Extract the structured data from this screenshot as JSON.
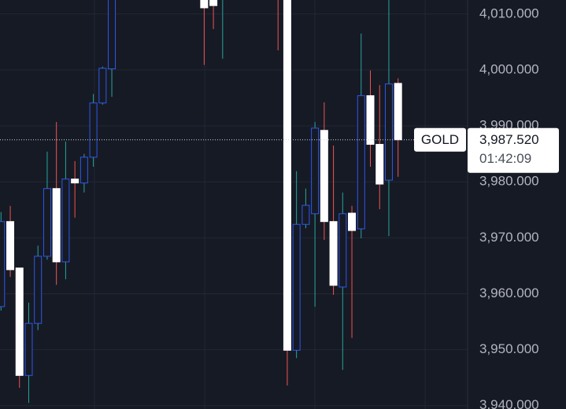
{
  "chart_data": {
    "type": "candlestick",
    "symbol": "GOLD",
    "countdown": "01:42:09",
    "last_price": {
      "value": 3987.52,
      "label": "3,987.520"
    },
    "open": [
      3957.7,
      3972.9,
      3964.6,
      3945.4,
      3954.7,
      3966.7,
      3978.8,
      3965.7,
      3980.5,
      3979.8,
      3984.4,
      3994.1,
      4000.2,
      null,
      null,
      null,
      null,
      null,
      null,
      null,
      null,
      null,
      4014,
      4014,
      4013,
      null,
      null,
      null,
      null,
      null,
      4016,
      4015,
      3949.9,
      3972.4,
      3974.3,
      3989.2,
      3972.9,
      3961.2,
      3974.4,
      3971.6,
      3995.4,
      3986.7,
      3980.3,
      3997.6
    ],
    "high": [
      3974.6,
      3975.7,
      3964.6,
      3958.4,
      3968.6,
      3985.4,
      3990.7,
      3987.2,
      3983.7,
      3985.0,
      3995.7,
      4000.6,
      4016,
      null,
      null,
      null,
      null,
      null,
      null,
      null,
      null,
      null,
      4016,
      4016,
      4017,
      null,
      null,
      null,
      null,
      null,
      4018,
      4018,
      3981.9,
      3978.8,
      3990.7,
      3994.2,
      3986.5,
      3978.1,
      3975.7,
      4006.5,
      3999.9,
      3997.3,
      4013,
      3998.5
    ],
    "low": [
      3957.0,
      3963.0,
      3943.2,
      3940.5,
      3953.5,
      3966.1,
      3961.6,
      3962.6,
      3973.6,
      3978.1,
      3982.7,
      3993.8,
      3995.2,
      null,
      null,
      null,
      null,
      null,
      null,
      null,
      null,
      null,
      4000.9,
      4007.3,
      4002.0,
      null,
      null,
      null,
      null,
      null,
      4003.5,
      3943.6,
      3948.5,
      3971.7,
      3957.7,
      3969.6,
      3959.8,
      3946.4,
      3952.1,
      3969.9,
      3982.7,
      3975.1,
      3970.3,
      3980.9
    ],
    "close": [
      3972.9,
      3964.3,
      3945.4,
      3954.7,
      3966.7,
      3978.8,
      3965.7,
      3980.5,
      3979.8,
      3984.4,
      3994.1,
      4000.3,
      4014,
      null,
      null,
      null,
      null,
      null,
      null,
      null,
      null,
      null,
      4011.1,
      4011.5,
      4015,
      null,
      null,
      null,
      null,
      null,
      4013,
      3949.9,
      3972.4,
      3975.8,
      3989.6,
      3972.9,
      3961.5,
      3974.3,
      3971.3,
      3995.4,
      3986.7,
      3979.6,
      3997.5,
      3987.52
    ],
    "up_color": "#2f58e8",
    "down_color": "#ffffff",
    "up_wick_color": "#26a69a",
    "down_wick_color": "#ef5350",
    "ylim": [
      3939.4,
      4012.5
    ],
    "yticks": [
      {
        "value": 3940,
        "label": "3,940.000"
      },
      {
        "value": 3950,
        "label": "3,950.000"
      },
      {
        "value": 3960,
        "label": "3,960.000"
      },
      {
        "value": 3970,
        "label": "3,970.000"
      },
      {
        "value": 3980,
        "label": "3,980.000"
      },
      {
        "value": 3990,
        "label": "3,990.000"
      },
      {
        "value": 4000,
        "label": "4,000.000"
      },
      {
        "value": 4010,
        "label": "4,010.000"
      }
    ],
    "grid": true
  }
}
